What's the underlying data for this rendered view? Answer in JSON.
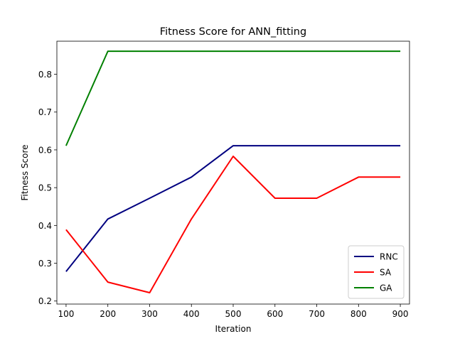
{
  "chart_data": {
    "type": "line",
    "title": "Fitness Score for ANN_fitting",
    "xlabel": "Iteration",
    "ylabel": "Fitness Score",
    "x": [
      100,
      200,
      300,
      400,
      500,
      600,
      700,
      800,
      900
    ],
    "xlim": [
      78,
      922
    ],
    "ylim": [
      0.192,
      0.8875
    ],
    "xticks": [
      100,
      200,
      300,
      400,
      500,
      600,
      700,
      800,
      900
    ],
    "yticks": [
      0.2,
      0.3,
      0.4,
      0.5,
      0.6,
      0.7,
      0.8
    ],
    "ytick_labels": [
      "0.2",
      "0.3",
      "0.4",
      "0.5",
      "0.6",
      "0.7",
      "0.8"
    ],
    "grid": false,
    "legend_position": "lower-right",
    "series": [
      {
        "name": "RNC",
        "color": "#000080",
        "values": [
          0.278,
          0.417,
          0.472,
          0.528,
          0.611,
          0.611,
          0.611,
          0.611,
          0.611
        ]
      },
      {
        "name": "SA",
        "color": "#ff0000",
        "values": [
          0.389,
          0.25,
          0.222,
          0.417,
          0.583,
          0.472,
          0.472,
          0.528,
          0.528
        ]
      },
      {
        "name": "GA",
        "color": "#008000",
        "values": [
          0.611,
          0.861,
          0.861,
          0.861,
          0.861,
          0.861,
          0.861,
          0.861,
          0.861
        ]
      }
    ]
  }
}
